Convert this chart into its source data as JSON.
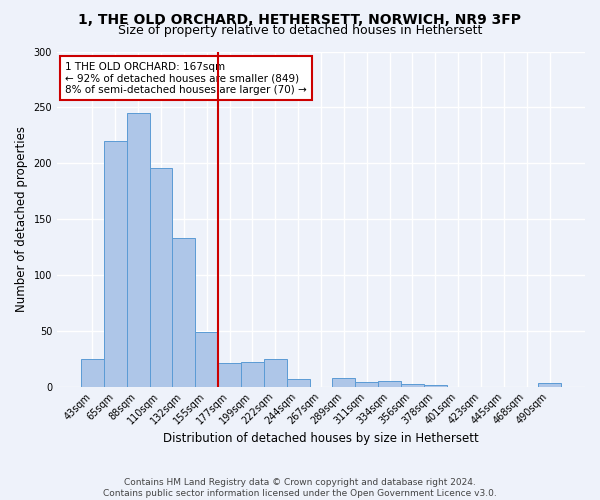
{
  "title": "1, THE OLD ORCHARD, HETHERSETT, NORWICH, NR9 3FP",
  "subtitle": "Size of property relative to detached houses in Hethersett",
  "xlabel": "Distribution of detached houses by size in Hethersett",
  "ylabel": "Number of detached properties",
  "footnote1": "Contains HM Land Registry data © Crown copyright and database right 2024.",
  "footnote2": "Contains public sector information licensed under the Open Government Licence v3.0.",
  "bar_labels": [
    "43sqm",
    "65sqm",
    "88sqm",
    "110sqm",
    "132sqm",
    "155sqm",
    "177sqm",
    "199sqm",
    "222sqm",
    "244sqm",
    "267sqm",
    "289sqm",
    "311sqm",
    "334sqm",
    "356sqm",
    "378sqm",
    "401sqm",
    "423sqm",
    "445sqm",
    "468sqm",
    "490sqm"
  ],
  "bar_values": [
    25,
    220,
    245,
    196,
    133,
    49,
    21,
    22,
    25,
    7,
    0,
    8,
    4,
    5,
    2,
    1,
    0,
    0,
    0,
    0,
    3
  ],
  "bar_color": "#aec6e8",
  "bar_edge_color": "#5b9bd5",
  "vline_color": "#cc0000",
  "annotation_text": "1 THE OLD ORCHARD: 167sqm\n← 92% of detached houses are smaller (849)\n8% of semi-detached houses are larger (70) →",
  "annotation_box_edge": "#cc0000",
  "annotation_box_face": "white",
  "ylim": [
    0,
    300
  ],
  "yticks": [
    0,
    50,
    100,
    150,
    200,
    250,
    300
  ],
  "bg_color": "#eef2fa",
  "plot_bg_color": "#eef2fa",
  "grid_color": "white",
  "title_fontsize": 10,
  "subtitle_fontsize": 9,
  "axis_label_fontsize": 8.5,
  "tick_fontsize": 7,
  "annotation_fontsize": 7.5,
  "footnote_fontsize": 6.5
}
